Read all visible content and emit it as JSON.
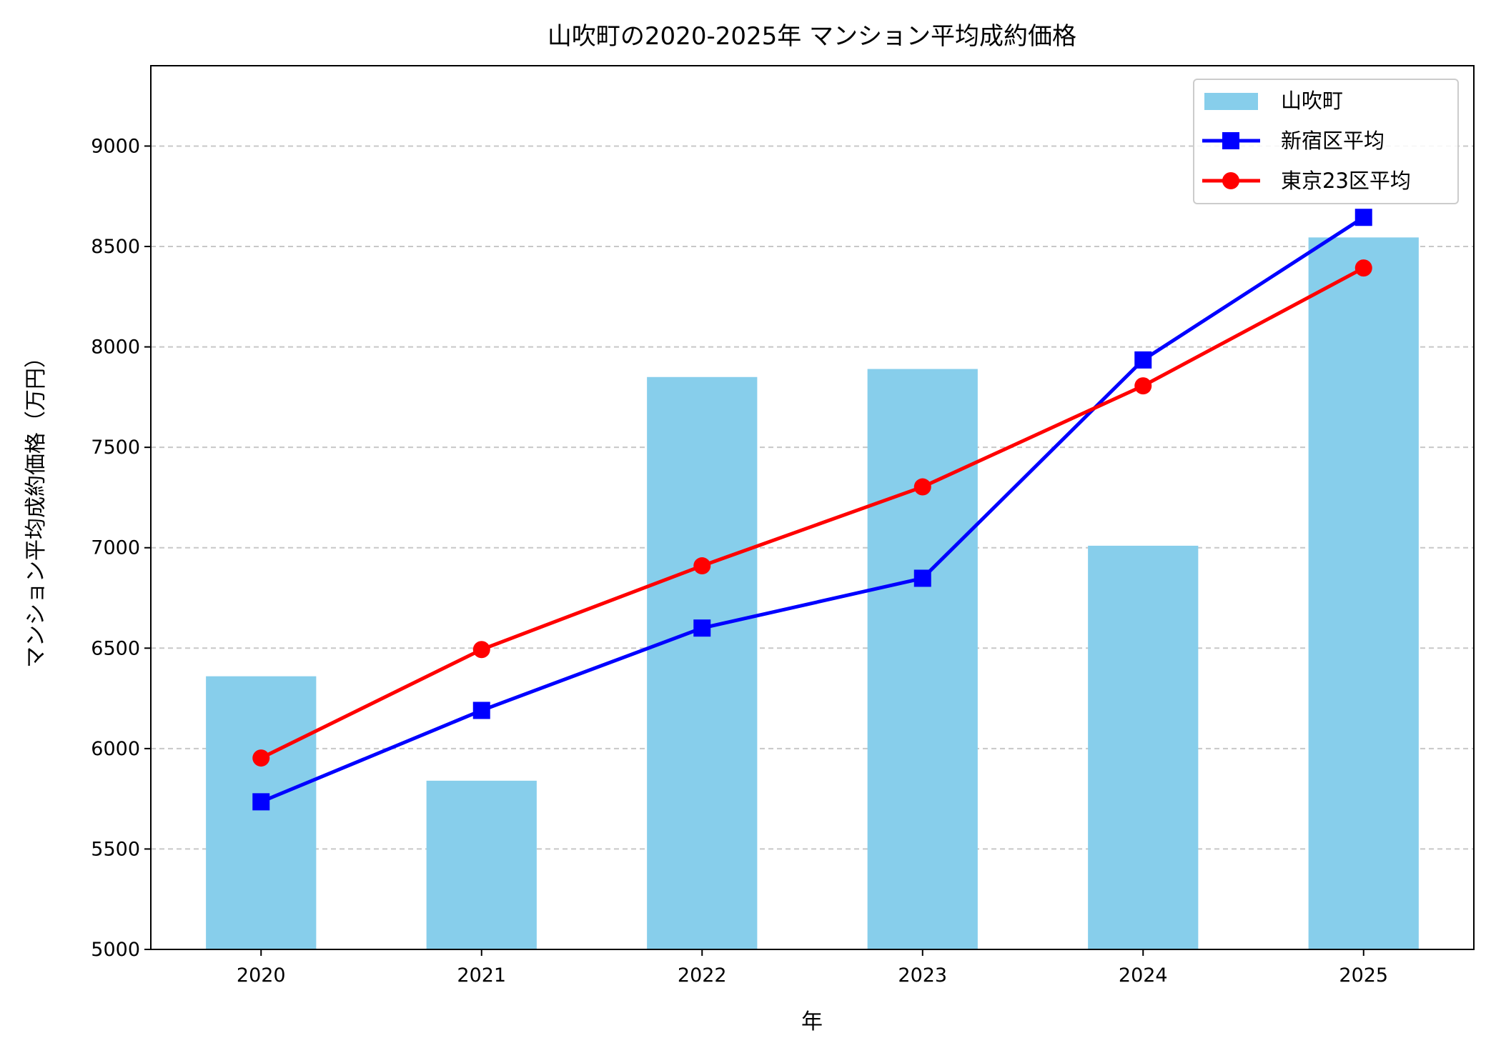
{
  "chart_data": {
    "type": "bar+line",
    "title": "山吹町の2020-2025年 マンション平均成約価格",
    "xlabel": "年",
    "ylabel": "マンション平均成約価格（万円）",
    "categories": [
      "2020",
      "2021",
      "2022",
      "2023",
      "2024",
      "2025"
    ],
    "ylim": [
      5000,
      9400
    ],
    "yticks": [
      "5000",
      "5500",
      "6000",
      "6500",
      "7000",
      "7500",
      "8000",
      "8500",
      "9000"
    ],
    "grid": "y-dashed",
    "legend_position": "top-right",
    "series": [
      {
        "name": "山吹町",
        "kind": "bar",
        "color": "#87CEEB",
        "values": [
          6360,
          5840,
          7850,
          7890,
          7010,
          8545
        ]
      },
      {
        "name": "新宿区平均",
        "kind": "line",
        "marker": "square",
        "color": "#0000FF",
        "values": [
          5735,
          6190,
          6600,
          6848,
          7935,
          8645
        ]
      },
      {
        "name": "東京23区平均",
        "kind": "line",
        "marker": "circle",
        "color": "#FF0000",
        "values": [
          5953,
          6493,
          6910,
          7303,
          7806,
          8393
        ]
      }
    ]
  }
}
